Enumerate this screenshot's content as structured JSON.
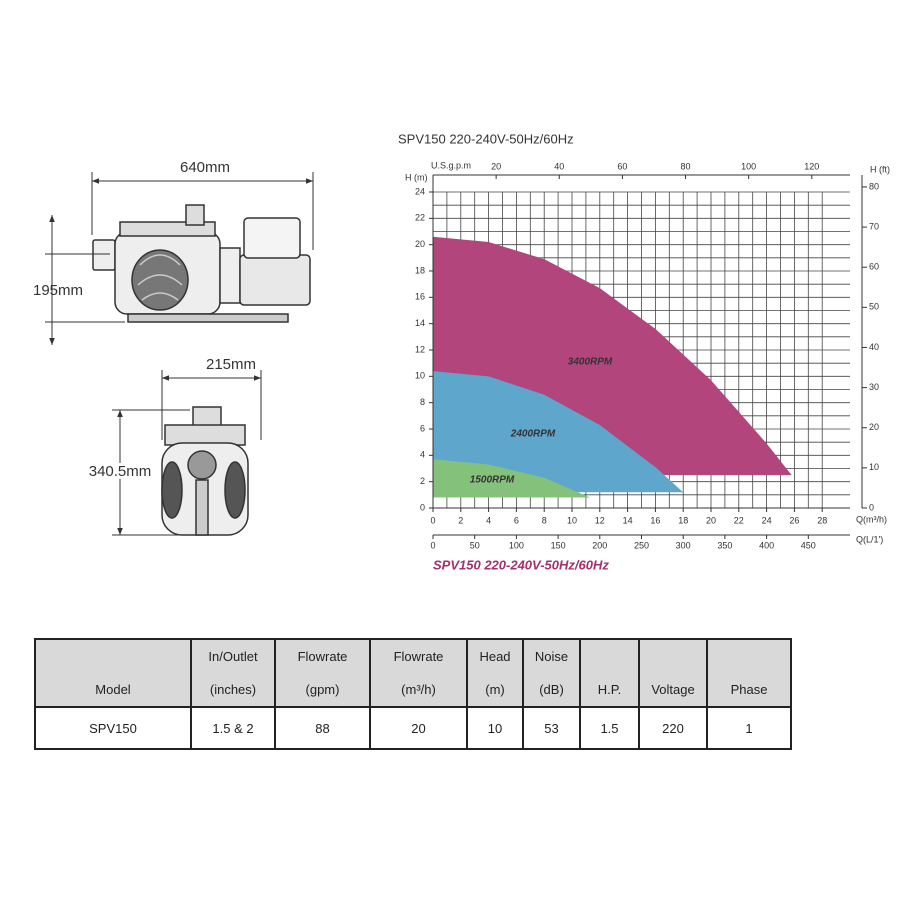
{
  "drawing": {
    "dimensions": [
      "640mm",
      "195mm",
      "215mm",
      "340.5mm"
    ]
  },
  "chart_data": {
    "type": "area",
    "title": "SPV150 220-240V-50Hz/60Hz",
    "caption": "SPV150  220-240V-50Hz/60Hz",
    "xlabel": "Q(m³/h)",
    "ylabel": "H (m)",
    "x2label": "U.S.g.p.m",
    "x3label": "Q(L/1')",
    "y2label": "H (ft)",
    "xlim": [
      0,
      30
    ],
    "xticks": [
      0,
      2,
      4,
      6,
      8,
      10,
      12,
      14,
      16,
      18,
      20,
      22,
      24,
      26,
      28
    ],
    "ylim": [
      0,
      24
    ],
    "yticks": [
      0,
      2,
      4,
      6,
      8,
      10,
      12,
      14,
      16,
      18,
      20,
      22,
      24
    ],
    "x2lim": [
      0,
      132.1
    ],
    "x2ticks": [
      20,
      40,
      60,
      80,
      100,
      120
    ],
    "x3lim": [
      0,
      500
    ],
    "x3ticks": [
      0,
      50,
      100,
      150,
      200,
      250,
      300,
      350,
      400,
      450
    ],
    "y2lim": [
      0,
      78.74
    ],
    "y2ticks": [
      0,
      10,
      20,
      30,
      40,
      50,
      60,
      70,
      80
    ],
    "grid": true,
    "series": [
      {
        "name": "3400RPM",
        "color": "#b2467c",
        "x": [
          0,
          4,
          8,
          12,
          16,
          20,
          24,
          25.8
        ],
        "values": [
          20.6,
          20.2,
          18.9,
          16.7,
          13.6,
          9.7,
          4.9,
          2.5
        ]
      },
      {
        "name": "2400RPM",
        "color": "#5ea6cc",
        "x": [
          0,
          4,
          8,
          12,
          16,
          18
        ],
        "values": [
          10.4,
          10.0,
          8.6,
          6.3,
          3.1,
          1.2
        ]
      },
      {
        "name": "1500RPM",
        "color": "#84c27c",
        "x": [
          0,
          4,
          8,
          11.3
        ],
        "values": [
          3.7,
          3.3,
          2.3,
          0.8
        ]
      }
    ]
  },
  "table": {
    "header": [
      [
        "Model"
      ],
      [
        "In/Outlet",
        "(inches)"
      ],
      [
        "Flowrate",
        "(gpm)"
      ],
      [
        "Flowrate",
        "(m³/h)"
      ],
      [
        "Head",
        "(m)"
      ],
      [
        "Noise",
        "(dB)"
      ],
      [
        "H.P."
      ],
      [
        "Voltage"
      ],
      [
        "Phase"
      ]
    ],
    "rows": [
      [
        "SPV150",
        "1.5 & 2",
        "88",
        "20",
        "10",
        "53",
        "1.5",
        "220",
        "1"
      ]
    ]
  }
}
